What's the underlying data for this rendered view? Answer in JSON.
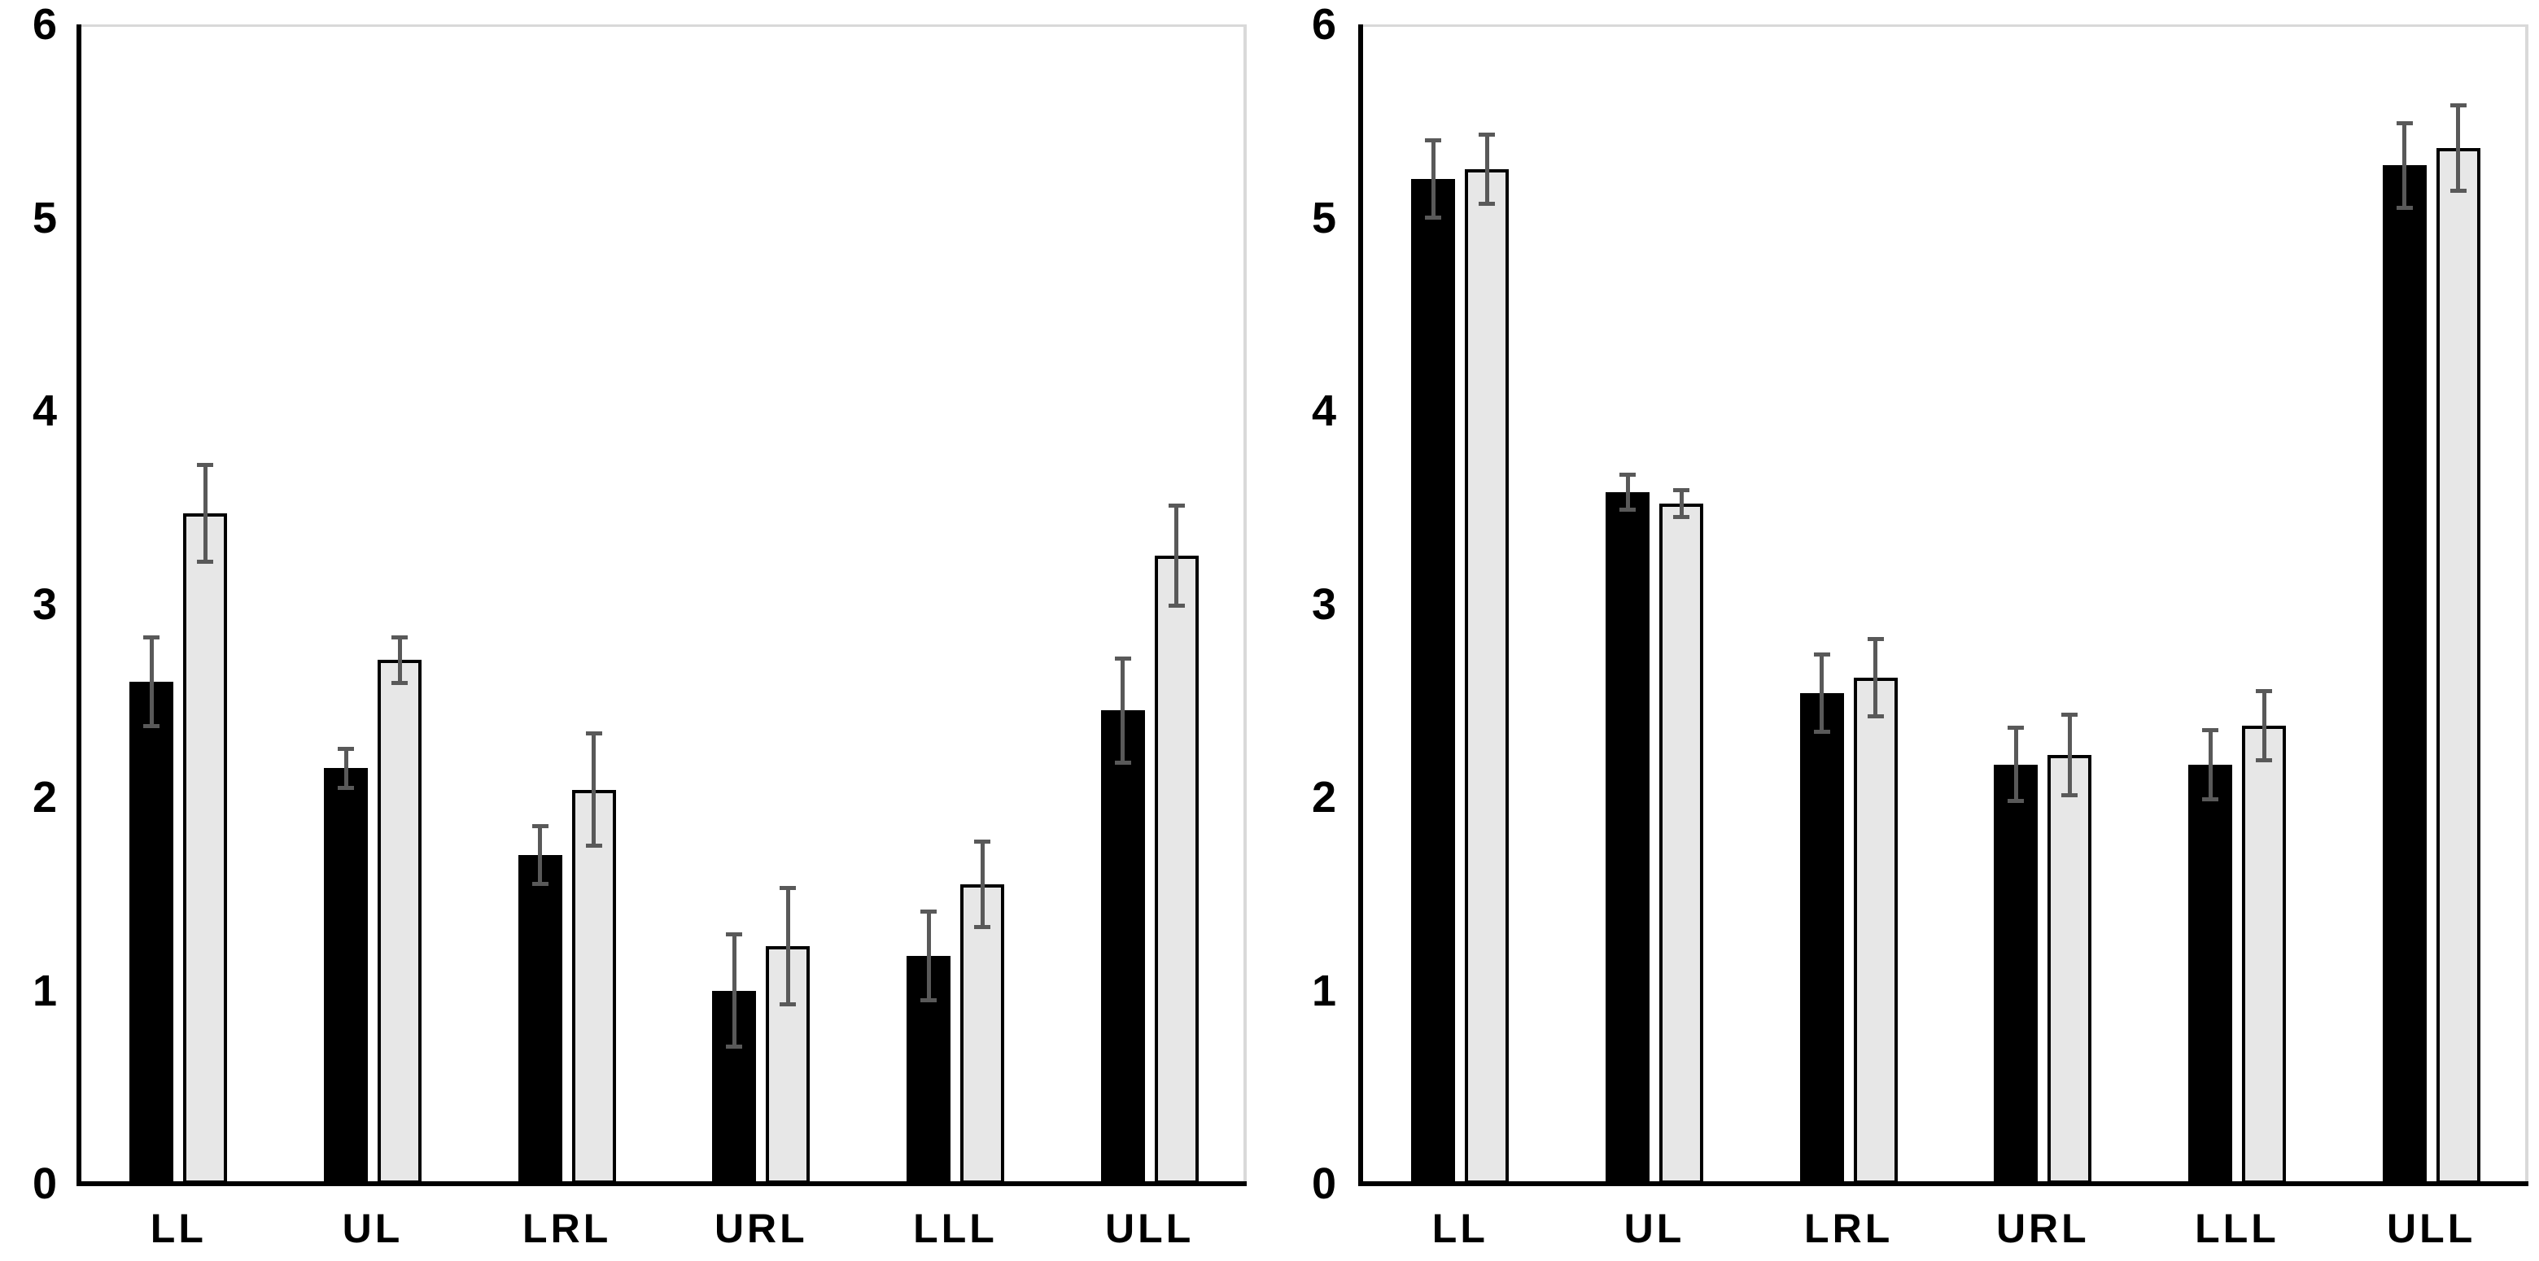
{
  "figure": {
    "background": "#ffffff",
    "panel_count": 2
  },
  "colors": {
    "bar_black_fill": "#000000",
    "bar_gray_fill": "#e7e7e7",
    "bar_border": "#000000",
    "error_bar": "#595959",
    "axis_line": "#000000",
    "panel_border": "#d9d9d9",
    "text": "#000000"
  },
  "chart_data": [
    {
      "type": "bar",
      "panel": "left",
      "title": "",
      "xlabel": "",
      "ylabel": "",
      "categories": [
        "LL",
        "UL",
        "LRL",
        "URL",
        "LLL",
        "ULL"
      ],
      "yticks": [
        "0",
        "1",
        "2",
        "3",
        "4",
        "5",
        "6"
      ],
      "ylim": [
        0,
        6
      ],
      "grid": false,
      "legend": "none",
      "error_bars": true,
      "series": [
        {
          "name": "black",
          "fill": "#000000",
          "values": [
            2.6,
            2.15,
            1.7,
            1.0,
            1.18,
            2.45
          ],
          "errors": [
            0.24,
            0.11,
            0.16,
            0.3,
            0.24,
            0.28
          ]
        },
        {
          "name": "light-gray",
          "fill": "#e7e7e7",
          "values": [
            3.47,
            2.71,
            2.04,
            1.23,
            1.55,
            3.25
          ],
          "errors": [
            0.26,
            0.13,
            0.3,
            0.31,
            0.23,
            0.27
          ]
        }
      ]
    },
    {
      "type": "bar",
      "panel": "right",
      "title": "",
      "xlabel": "",
      "ylabel": "",
      "categories": [
        "LL",
        "UL",
        "LRL",
        "URL",
        "LLL",
        "ULL"
      ],
      "yticks": [
        "0",
        "1",
        "2",
        "3",
        "4",
        "5",
        "6"
      ],
      "ylim": [
        0,
        6
      ],
      "grid": false,
      "legend": "none",
      "error_bars": true,
      "series": [
        {
          "name": "black",
          "fill": "#000000",
          "values": [
            5.2,
            3.58,
            2.54,
            2.17,
            2.17,
            5.27
          ],
          "errors": [
            0.21,
            0.1,
            0.21,
            0.2,
            0.19,
            0.23
          ]
        },
        {
          "name": "light-gray",
          "fill": "#e7e7e7",
          "values": [
            5.25,
            3.52,
            2.62,
            2.22,
            2.37,
            5.36
          ],
          "errors": [
            0.19,
            0.08,
            0.21,
            0.22,
            0.19,
            0.23
          ]
        }
      ]
    }
  ]
}
